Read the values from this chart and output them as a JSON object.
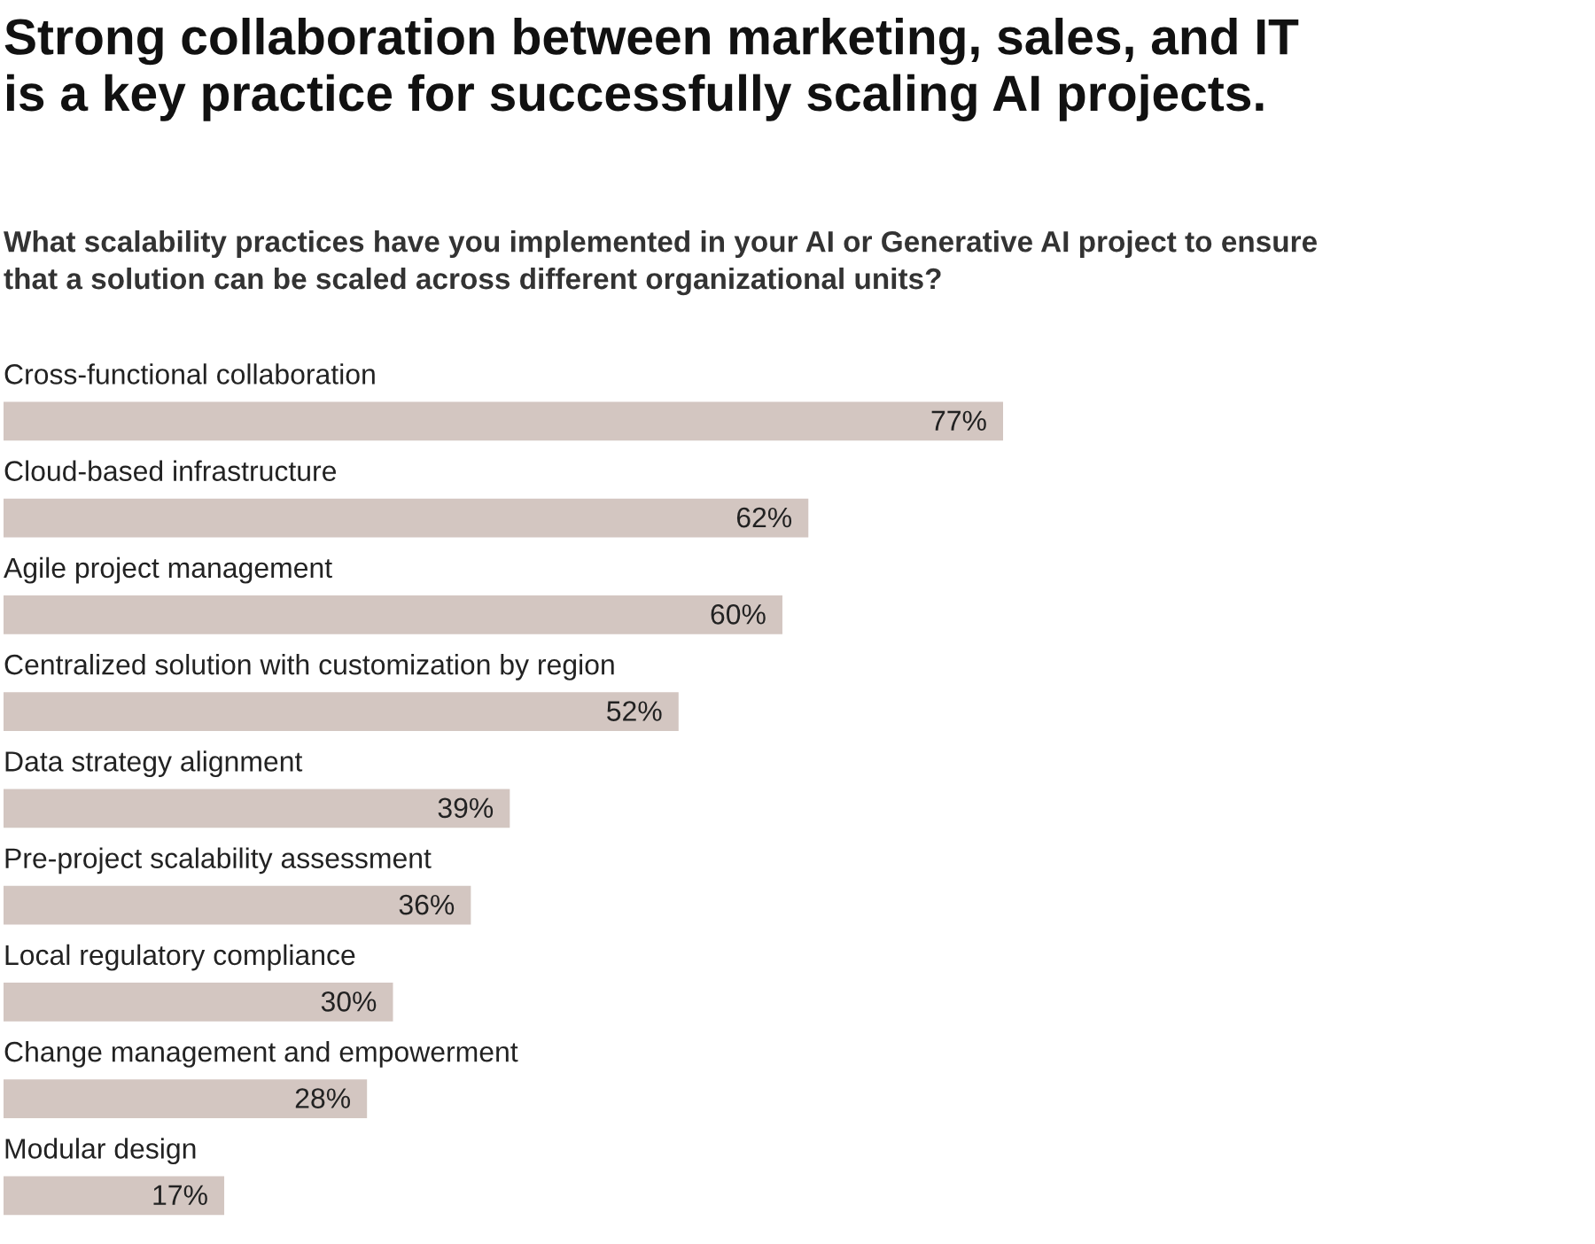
{
  "chart_data": {
    "type": "bar",
    "orientation": "horizontal",
    "title": "Strong collaboration between marketing, sales, and IT\nis a key practice for successfully scaling AI projects.",
    "subtitle": "What scalability practices have you implemented in your AI or Generative AI project to ensure\nthat a solution can be scaled across different organizational units?",
    "categories": [
      "Cross-functional collaboration",
      "Cloud-based infrastructure",
      "Agile project management",
      "Centralized solution with customization by region",
      "Data strategy alignment",
      "Pre-project scalability assessment",
      "Local regulatory compliance",
      "Change management and empowerment",
      "Modular design"
    ],
    "values": [
      77,
      62,
      60,
      52,
      39,
      36,
      30,
      28,
      17
    ],
    "value_labels": [
      "77%",
      "62%",
      "60%",
      "52%",
      "39%",
      "36%",
      "30%",
      "28%",
      "17%"
    ],
    "color": "#d3c6c1"
  }
}
